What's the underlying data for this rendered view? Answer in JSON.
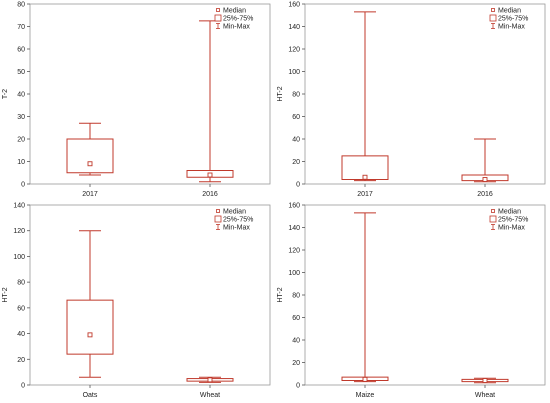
{
  "colors": {
    "box": "#c0392b",
    "axis": "#555555",
    "frame": "#9a9a9a",
    "text": "#222222"
  },
  "legend": {
    "median": "Median",
    "iqr": "25%-75%",
    "range": "Min-Max"
  },
  "chart_data": [
    {
      "type": "boxplot",
      "ylabel": "T-2",
      "ylim": [
        0,
        80
      ],
      "yticks": [
        0,
        10,
        20,
        30,
        40,
        50,
        60,
        70,
        80
      ],
      "legend_position": "top-right",
      "categories": [
        "2017",
        "2016"
      ],
      "boxes": [
        {
          "category": "2017",
          "min": 4,
          "q1": 5,
          "median": 9,
          "q3": 20,
          "max": 27
        },
        {
          "category": "2016",
          "min": 1,
          "q1": 3,
          "median": 4,
          "q3": 6,
          "max": 72.5
        }
      ]
    },
    {
      "type": "boxplot",
      "ylabel": "HT-2",
      "ylim": [
        0,
        160
      ],
      "yticks": [
        0,
        20,
        40,
        60,
        80,
        100,
        120,
        140,
        160
      ],
      "legend_position": "top-right",
      "categories": [
        "2017",
        "2016"
      ],
      "boxes": [
        {
          "category": "2017",
          "min": 3,
          "q1": 4,
          "median": 6,
          "q3": 25,
          "max": 153
        },
        {
          "category": "2016",
          "min": 2,
          "q1": 3,
          "median": 4,
          "q3": 8,
          "max": 40
        }
      ]
    },
    {
      "type": "boxplot",
      "ylabel": "HT-2",
      "ylim": [
        0,
        140
      ],
      "yticks": [
        0,
        20,
        40,
        60,
        80,
        100,
        120,
        140
      ],
      "legend_position": "top-right",
      "categories": [
        "Oats",
        "Wheat"
      ],
      "boxes": [
        {
          "category": "Oats",
          "min": 6,
          "q1": 24,
          "median": 39,
          "q3": 66,
          "max": 120
        },
        {
          "category": "Wheat",
          "min": 2,
          "q1": 3,
          "median": 4,
          "q3": 5,
          "max": 6
        }
      ]
    },
    {
      "type": "boxplot",
      "ylabel": "HT-2",
      "ylim": [
        0,
        160
      ],
      "yticks": [
        0,
        20,
        40,
        60,
        80,
        100,
        120,
        140,
        160
      ],
      "legend_position": "top-right",
      "categories": [
        "Maize",
        "Wheat"
      ],
      "boxes": [
        {
          "category": "Maize",
          "min": 3,
          "q1": 4,
          "median": 5,
          "q3": 7,
          "max": 153
        },
        {
          "category": "Wheat",
          "min": 2,
          "q1": 3,
          "median": 4,
          "q3": 5,
          "max": 6
        }
      ]
    }
  ]
}
